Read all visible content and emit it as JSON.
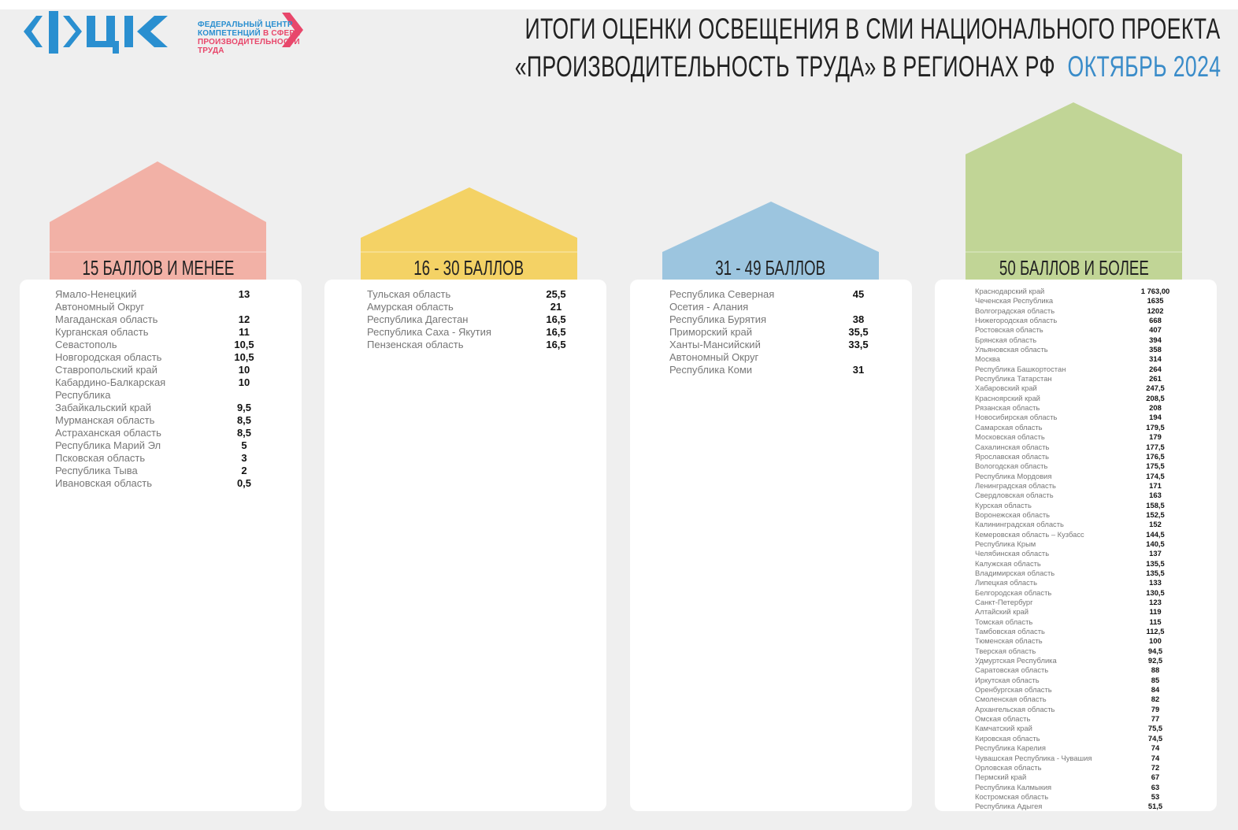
{
  "logo": {
    "letters": "ФЦК",
    "line1": "ФЕДЕРАЛЬНЫЙ ЦЕНТР",
    "line2a": "КОМПЕТЕНЦИЙ",
    "line2b": "В СФЕРЕ",
    "line3": "ПРОИЗВОДИТЕЛЬНОСТИ",
    "line4": "ТРУДА"
  },
  "header": {
    "line1": "ИТОГИ ОЦЕНКИ ОСВЕЩЕНИЯ В СМИ НАЦИОНАЛЬНОГО ПРОЕКТА",
    "line2": "«ПРОИЗВОДИТЕЛЬНОСТЬ ТРУДА» В РЕГИОНАХ РФ",
    "period": "ОКТЯБРЬ 2024"
  },
  "colors": {
    "pink": "#f2b1a6",
    "yellow": "#f4d265",
    "blue": "#9cc5df",
    "green": "#c1d596",
    "accent": "#3a8cc9"
  },
  "groups": [
    {
      "label": "15 БАЛЛОВ И МЕНЕЕ",
      "rows": [
        [
          "Ямало-Ненецкий\nАвтономный Округ",
          "13"
        ],
        [
          "Магаданская область",
          "12"
        ],
        [
          "Курганская область",
          "11"
        ],
        [
          "Севастополь",
          "10,5"
        ],
        [
          "Новгородская область",
          "10,5"
        ],
        [
          "Ставропольский край",
          "10"
        ],
        [
          "Кабардино-Балкарская\nРеспублика",
          "10"
        ],
        [
          "Забайкальский край",
          "9,5"
        ],
        [
          "Мурманская область",
          "8,5"
        ],
        [
          "Астраханская область",
          "8,5"
        ],
        [
          "Республика Марий Эл",
          "5"
        ],
        [
          "Псковская область",
          "3"
        ],
        [
          "Республика Тыва",
          "2"
        ],
        [
          "Ивановская область",
          "0,5"
        ]
      ]
    },
    {
      "label": "16 - 30 БАЛЛОВ",
      "rows": [
        [
          "Тульская область",
          "25,5"
        ],
        [
          "Амурская область",
          "21"
        ],
        [
          "Республика Дагестан",
          "16,5"
        ],
        [
          "Республика Саха - Якутия",
          "16,5"
        ],
        [
          "Пензенская область",
          "16,5"
        ]
      ]
    },
    {
      "label": "31 - 49 БАЛЛОВ",
      "rows": [
        [
          "Республика Северная\nОсетия - Алания",
          "45"
        ],
        [
          "Республика Бурятия",
          "38"
        ],
        [
          "Приморский край",
          "35,5"
        ],
        [
          "Ханты-Мансийский\nАвтономный Округ",
          "33,5"
        ],
        [
          "Республика Коми",
          "31"
        ]
      ]
    },
    {
      "label": "50 БАЛЛОВ И БОЛЕЕ",
      "rows": [
        [
          "Краснодарский край",
          "1 763,00"
        ],
        [
          "Чеченская Республика",
          "1635"
        ],
        [
          "Волгоградская область",
          "1202"
        ],
        [
          "Нижегородская область",
          "668"
        ],
        [
          "Ростовская область",
          "407"
        ],
        [
          "Брянская область",
          "394"
        ],
        [
          "Ульяновская область",
          "358"
        ],
        [
          "Москва",
          "314"
        ],
        [
          "Республика Башкортостан",
          "264"
        ],
        [
          "Республика Татарстан",
          "261"
        ],
        [
          "Хабаровский край",
          "247,5"
        ],
        [
          "Красноярский край",
          "208,5"
        ],
        [
          "Рязанская область",
          "208"
        ],
        [
          "Новосибирская область",
          "194"
        ],
        [
          "Самарская область",
          "179,5"
        ],
        [
          "Московская область",
          "179"
        ],
        [
          "Сахалинская область",
          "177,5"
        ],
        [
          "Ярославская область",
          "176,5"
        ],
        [
          "Вологодская область",
          "175,5"
        ],
        [
          "Республика Мордовия",
          "174,5"
        ],
        [
          "Ленинградская область",
          "171"
        ],
        [
          "Свердловская область",
          "163"
        ],
        [
          "Курская область",
          "158,5"
        ],
        [
          "Воронежская область",
          "152,5"
        ],
        [
          "Калининградская область",
          "152"
        ],
        [
          "Кемеровская область – Кузбасс",
          "144,5"
        ],
        [
          "Республика Крым",
          "140,5"
        ],
        [
          "Челябинская область",
          "137"
        ],
        [
          "Калужская область",
          "135,5"
        ],
        [
          "Владимирская область",
          "135,5"
        ],
        [
          "Липецкая область",
          "133"
        ],
        [
          "Белгородская область",
          "130,5"
        ],
        [
          "Санкт-Петербург",
          "123"
        ],
        [
          "Алтайский край",
          "119"
        ],
        [
          "Томская область",
          "115"
        ],
        [
          "Тамбовская область",
          "112,5"
        ],
        [
          "Тюменская область",
          "100"
        ],
        [
          "Тверская область",
          "94,5"
        ],
        [
          "Удмуртская Республика",
          "92,5"
        ],
        [
          "Саратовская область",
          "88"
        ],
        [
          "Иркутская область",
          "85"
        ],
        [
          "Оренбургская область",
          "84"
        ],
        [
          "Смоленская область",
          "82"
        ],
        [
          "Архангельская область",
          "79"
        ],
        [
          "Омская область",
          "77"
        ],
        [
          "Камчатский край",
          "75,5"
        ],
        [
          "Кировская область",
          "74,5"
        ],
        [
          "Республика Карелия",
          "74"
        ],
        [
          "Чувашская Республика - Чувашия",
          "74"
        ],
        [
          "Орловская область",
          "72"
        ],
        [
          "Пермский край",
          "67"
        ],
        [
          "Республика Калмыкия",
          "63"
        ],
        [
          "Костромская область",
          "53"
        ],
        [
          "Республика Адыгея",
          "51,5"
        ]
      ]
    }
  ]
}
